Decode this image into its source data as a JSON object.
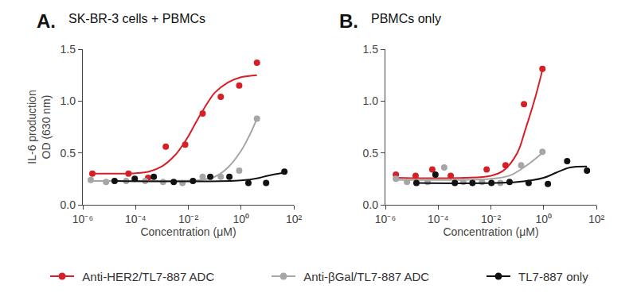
{
  "chart_data": [
    {
      "type": "scatter",
      "panel": "A.",
      "title": "SK-BR-3 cells + PBMCs",
      "x_label": "Concentration (μM)",
      "y_label": "IL-6 production\nOD (630 nm)",
      "log": "x",
      "grid": false,
      "marker": "circle",
      "line_style": "solid",
      "xlim": [
        1e-06,
        100
      ],
      "xticks": [
        {
          "value": 1e-06,
          "label": "10⁻⁶"
        },
        {
          "value": 0.0001,
          "label": "10⁻⁴"
        },
        {
          "value": 0.01,
          "label": "10⁻²"
        },
        {
          "value": 1,
          "label": "10⁰"
        },
        {
          "value": 100,
          "label": "10²"
        }
      ],
      "ylim": [
        0,
        1.5
      ],
      "yticks": [
        {
          "value": 0,
          "label": "0.0"
        },
        0.5,
        {
          "value": 1,
          "label": "1.0"
        },
        1.5
      ],
      "series": [
        {
          "name": "Anti-HER2/TL7-887 ADC",
          "color": "#d62027",
          "x": [
            2.3e-06,
            5.4e-05,
            0.0003,
            0.0014,
            0.0076,
            0.035,
            0.17,
            0.85,
            4.0
          ],
          "values": [
            0.3,
            0.3,
            0.26,
            0.56,
            0.58,
            0.88,
            1.04,
            1.15,
            1.37
          ],
          "fit": {
            "x": [
              2.3e-06,
              0.0001,
              0.00032,
              0.001,
              0.0032,
              0.0063,
              0.01,
              0.02,
              0.032,
              0.063,
              0.1,
              0.32,
              1,
              4.0
            ],
            "values": [
              0.3,
              0.305,
              0.32,
              0.37,
              0.48,
              0.58,
              0.66,
              0.8,
              0.89,
              1.01,
              1.08,
              1.18,
              1.23,
              1.25
            ]
          }
        },
        {
          "name": "Anti-βGal/TL7-887 ADC",
          "color": "#a6a6a6",
          "x": [
            2e-06,
            7.6e-06,
            4.4e-05,
            0.00023,
            0.0011,
            0.006,
            0.035,
            0.17,
            0.85,
            4.0
          ],
          "values": [
            0.24,
            0.22,
            0.23,
            0.23,
            0.22,
            0.21,
            0.27,
            0.27,
            0.33,
            0.83
          ],
          "fit": {
            "x": [
              2e-06,
              0.001,
              0.03,
              0.1,
              0.32,
              1,
              2,
              4.0
            ],
            "values": [
              0.23,
              0.23,
              0.24,
              0.27,
              0.36,
              0.52,
              0.66,
              0.83
            ]
          }
        },
        {
          "name": "TL7-887 only",
          "color": "#111111",
          "x": [
            1.6e-05,
            9.3e-05,
            0.00049,
            0.0028,
            0.015,
            0.068,
            0.36,
            1.9,
            8.9,
            44
          ],
          "values": [
            0.23,
            0.25,
            0.27,
            0.22,
            0.23,
            0.27,
            0.27,
            0.21,
            0.21,
            0.32
          ],
          "fit": {
            "x": [
              1.6e-05,
              1,
              5,
              10,
              44
            ],
            "values": [
              0.23,
              0.235,
              0.26,
              0.28,
              0.31
            ]
          }
        }
      ]
    },
    {
      "type": "scatter",
      "panel": "B.",
      "title": "PBMCs only",
      "x_label": "Concentration (μM)",
      "log": "x",
      "grid": false,
      "marker": "circle",
      "line_style": "solid",
      "xlim": [
        1e-06,
        100
      ],
      "xticks": [
        {
          "value": 1e-06,
          "label": "10⁻⁶"
        },
        {
          "value": 0.0001,
          "label": "10⁻⁴"
        },
        {
          "value": 0.01,
          "label": "10⁻²"
        },
        {
          "value": 1,
          "label": "10⁰"
        },
        {
          "value": 100,
          "label": "10²"
        }
      ],
      "ylim": [
        0,
        1.5
      ],
      "yticks": [
        {
          "value": 0,
          "label": "0.0"
        },
        0.5,
        {
          "value": 1,
          "label": "1.0"
        },
        1.5
      ],
      "series": [
        {
          "name": "Anti-HER2/TL7-887 ADC",
          "color": "#d62027",
          "x": [
            2.5e-06,
            1.4e-05,
            6e-05,
            0.0003,
            0.0069,
            0.036,
            0.18,
            0.9
          ],
          "values": [
            0.29,
            0.28,
            0.34,
            0.28,
            0.34,
            0.38,
            0.97,
            1.31
          ],
          "fit": {
            "x": [
              2.5e-06,
              0.001,
              0.01,
              0.03,
              0.1,
              0.2,
              0.5,
              0.9
            ],
            "values": [
              0.26,
              0.26,
              0.28,
              0.33,
              0.5,
              0.72,
              1.05,
              1.3
            ]
          }
        },
        {
          "name": "Anti-βGal/TL7-887 ADC",
          "color": "#a6a6a6",
          "x": [
            2.5e-06,
            6.6e-06,
            4e-05,
            0.00017,
            0.0009,
            0.0046,
            0.023,
            0.14,
            0.9
          ],
          "values": [
            0.25,
            0.22,
            0.22,
            0.36,
            0.22,
            0.22,
            0.21,
            0.38,
            0.51
          ],
          "fit": {
            "x": [
              2.5e-06,
              0.001,
              0.01,
              0.05,
              0.2,
              0.9
            ],
            "values": [
              0.24,
              0.24,
              0.25,
              0.28,
              0.37,
              0.5
            ]
          }
        },
        {
          "name": "TL7-887 only",
          "color": "#111111",
          "x": [
            1.5e-05,
            7.9e-05,
            0.00043,
            0.002,
            0.0105,
            0.051,
            0.27,
            1.45,
            7.8,
            44
          ],
          "values": [
            0.21,
            0.29,
            0.21,
            0.21,
            0.21,
            0.22,
            0.21,
            0.2,
            0.42,
            0.33
          ],
          "fit": {
            "x": [
              1.5e-05,
              0.1,
              1,
              3,
              10,
              44
            ],
            "values": [
              0.21,
              0.22,
              0.26,
              0.31,
              0.36,
              0.37
            ]
          }
        }
      ]
    }
  ]
}
